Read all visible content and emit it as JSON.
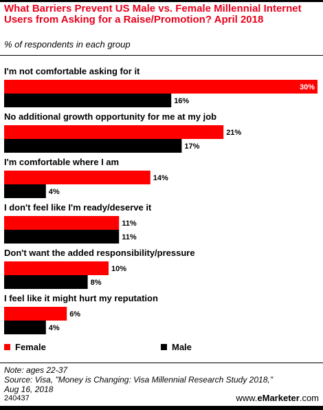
{
  "title": "What Barriers Prevent US Male vs. Female Millennial Internet Users from Asking for a Raise/Promotion? April 2018",
  "subtitle": "% of respondents in each group",
  "legend": {
    "female": "Female",
    "male": "Male"
  },
  "note": "Note: ages 22-37",
  "source_line1": "Source: Visa, \"Money is Changing: Visa Millennial Research Study 2018,\"",
  "source_line2": "Aug 16, 2018",
  "chart_id": "240437",
  "brand_prefix": "www.",
  "brand_name": "eMarketer",
  "brand_suffix": ".com",
  "colors": {
    "female": "#ff0000",
    "male": "#000000"
  },
  "chart_data": {
    "type": "bar",
    "orientation": "horizontal",
    "unit": "%",
    "categories": [
      "I'm not comfortable asking for it",
      "No additional growth opportunity for me at my job",
      "I'm comfortable where I am",
      "I don't feel like I'm ready/deserve it",
      "Don't want the added responsibility/pressure",
      "I feel like it might hurt my reputation"
    ],
    "series": [
      {
        "name": "Female",
        "values": [
          30,
          21,
          14,
          11,
          10,
          6
        ]
      },
      {
        "name": "Male",
        "values": [
          16,
          17,
          4,
          11,
          8,
          4
        ]
      }
    ],
    "value_labels": {
      "Female": [
        "30%",
        "21%",
        "14%",
        "11%",
        "10%",
        "6%"
      ],
      "Male": [
        "16%",
        "17%",
        "4%",
        "11%",
        "8%",
        "4%"
      ]
    },
    "xlim": [
      0,
      30
    ],
    "grid": false,
    "legend_position": "bottom"
  }
}
